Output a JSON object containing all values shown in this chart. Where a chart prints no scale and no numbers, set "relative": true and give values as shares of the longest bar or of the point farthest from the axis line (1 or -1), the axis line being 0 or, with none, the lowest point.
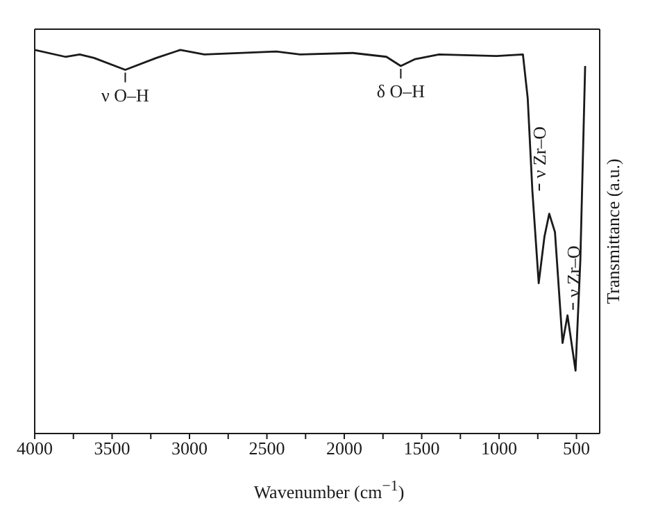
{
  "chart_data": {
    "type": "line",
    "relative": true,
    "xlabel": "Wavenumber (cm$^{−1}$)",
    "ylabel": "Transmittance (a.u.)",
    "x": [
      4000,
      3802,
      3709,
      3617,
      3415,
      3214,
      3059,
      2904,
      2440,
      2285,
      1945,
      1728,
      1635,
      1542,
      1388,
      1016,
      846,
      815,
      785,
      744,
      707,
      676,
      639,
      590,
      558,
      506,
      475,
      444
    ],
    "values": [
      1.0,
      0.982,
      0.988,
      0.979,
      0.948,
      0.979,
      1.0,
      0.988,
      0.996,
      0.988,
      0.992,
      0.982,
      0.958,
      0.976,
      0.988,
      0.984,
      0.988,
      0.874,
      0.633,
      0.392,
      0.513,
      0.573,
      0.525,
      0.236,
      0.308,
      0.164,
      0.452,
      0.958
    ],
    "color": "#1a1a1a",
    "xlim": [
      4000,
      350
    ],
    "xticks": [
      4000,
      {
        "value": 3750,
        "label": null
      },
      3500,
      {
        "value": 3250,
        "label": null
      },
      3000,
      {
        "value": 2750,
        "label": null
      },
      2500,
      {
        "value": 2250,
        "label": null
      },
      2000,
      {
        "value": 1750,
        "label": null
      },
      1500,
      {
        "value": 1250,
        "label": null
      },
      1000,
      {
        "value": 750,
        "label": null
      },
      500
    ],
    "marker": "none",
    "line_style": "solid",
    "annotations": [
      {
        "text": "ν O–H",
        "x": 3415,
        "y": 0.948
      },
      {
        "text": "δ O–H",
        "x": 1635,
        "y": 0.958
      },
      {
        "text": "ν Zr–O",
        "x": 785,
        "y": 0.633
      },
      {
        "text": "ν Zr–O",
        "x": 558,
        "y": 0.308
      }
    ]
  }
}
